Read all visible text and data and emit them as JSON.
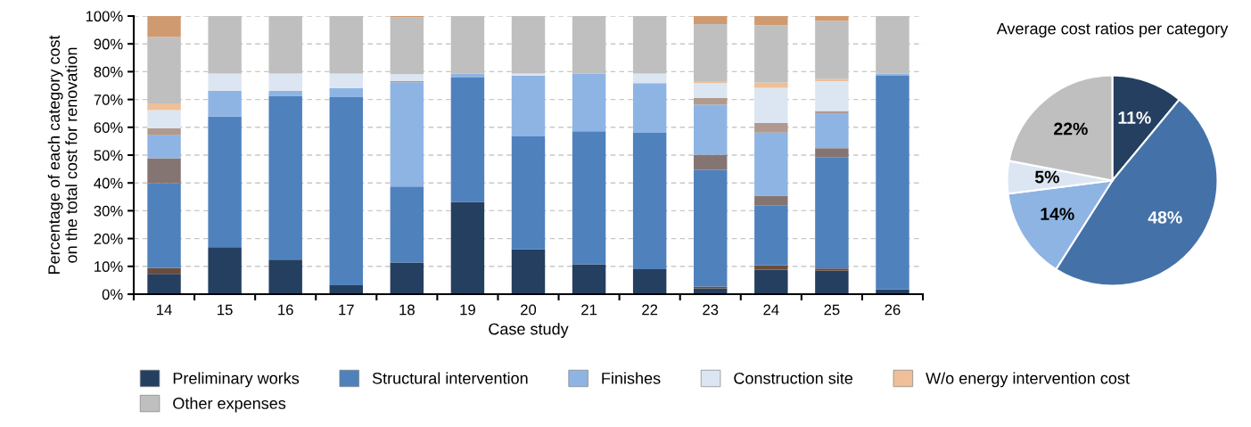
{
  "chart_data": [
    {
      "type": "bar",
      "stacked": true,
      "xlabel": "Case study",
      "ylabel": "Percentage of each category cost\non the total cost for renovation",
      "categories": [
        "14",
        "15",
        "16",
        "17",
        "18",
        "19",
        "20",
        "21",
        "22",
        "23",
        "24",
        "25",
        "26"
      ],
      "ylim": [
        0,
        100
      ],
      "yticks": [
        {
          "value": 0,
          "label": "0%"
        },
        {
          "value": 10,
          "label": "10%"
        },
        {
          "value": 20,
          "label": "20%"
        },
        {
          "value": 30,
          "label": "30%"
        },
        {
          "value": 40,
          "label": "40%"
        },
        {
          "value": 50,
          "label": "50%"
        },
        {
          "value": 60,
          "label": "60%"
        },
        {
          "value": 70,
          "label": "70%"
        },
        {
          "value": 80,
          "label": "80%"
        },
        {
          "value": 90,
          "label": "90%"
        },
        {
          "value": 100,
          "label": "100%"
        }
      ],
      "grid": "y",
      "legend": "bottom",
      "series": [
        {
          "name": "Preliminary works",
          "color": "#253f60",
          "values": [
            7.3,
            16.9,
            12.4,
            3.2,
            11.4,
            33.2,
            16.1,
            10.7,
            9.0,
            2.1,
            8.8,
            8.4,
            1.7
          ]
        },
        {
          "color": "#6b4c3b",
          "values": [
            2.1,
            0,
            0,
            0,
            0,
            0,
            0,
            0,
            0,
            0.6,
            1.5,
            0.8,
            0
          ]
        },
        {
          "name": "Structural intervention",
          "color": "#4f81bd",
          "values": [
            30.4,
            47.0,
            58.9,
            67.6,
            27.3,
            44.7,
            40.6,
            47.9,
            49.0,
            42.0,
            21.7,
            39.9,
            76.8
          ]
        },
        {
          "color": "#857572",
          "values": [
            9.1,
            0,
            0,
            0,
            0,
            0,
            0,
            0,
            0,
            5.5,
            3.4,
            3.4,
            0
          ]
        },
        {
          "name": "Finishes",
          "color": "#8eb4e3",
          "values": [
            8.2,
            9.2,
            1.8,
            3.3,
            37.5,
            1.4,
            21.8,
            20.7,
            17.9,
            17.9,
            22.7,
            12.3,
            0.8
          ]
        },
        {
          "color": "#b09a90",
          "values": [
            2.5,
            0,
            0,
            0,
            0.5,
            0,
            0,
            0,
            0,
            2.4,
            3.4,
            1.1,
            0
          ]
        },
        {
          "name": "Construction site",
          "color": "#dce6f2",
          "values": [
            6.6,
            6.2,
            6.2,
            5.2,
            2.4,
            0,
            0.8,
            0,
            3.4,
            5.4,
            12.7,
            10.7,
            0
          ]
        },
        {
          "name": "W/o energy intervention cost",
          "color": "#eebf98",
          "values": [
            2.4,
            0,
            0,
            0,
            0,
            0,
            0,
            0,
            0,
            0.7,
            1.9,
            0.8,
            0
          ]
        },
        {
          "name": "Other expenses",
          "color": "#bfbfbf",
          "values": [
            23.9,
            20.7,
            20.7,
            20.7,
            20.4,
            20.7,
            20.7,
            20.7,
            20.7,
            20.5,
            20.6,
            20.8,
            20.7
          ]
        },
        {
          "color": "#d09a70",
          "values": [
            7.5,
            0,
            0,
            0,
            0.5,
            0,
            0,
            0,
            0,
            2.9,
            3.3,
            1.8,
            0
          ]
        }
      ]
    },
    {
      "type": "pie",
      "title": "Average cost ratios per category",
      "categories": [
        null,
        null,
        null,
        null,
        null
      ],
      "values": [
        11,
        48,
        14,
        5,
        22
      ],
      "colors": [
        "#253f60",
        "#4472a8",
        "#8eb4e3",
        "#dce6f2",
        "#bfbfbf"
      ],
      "value_labels": [
        "11%",
        "48%",
        "14%",
        "5%",
        "22%"
      ]
    }
  ]
}
